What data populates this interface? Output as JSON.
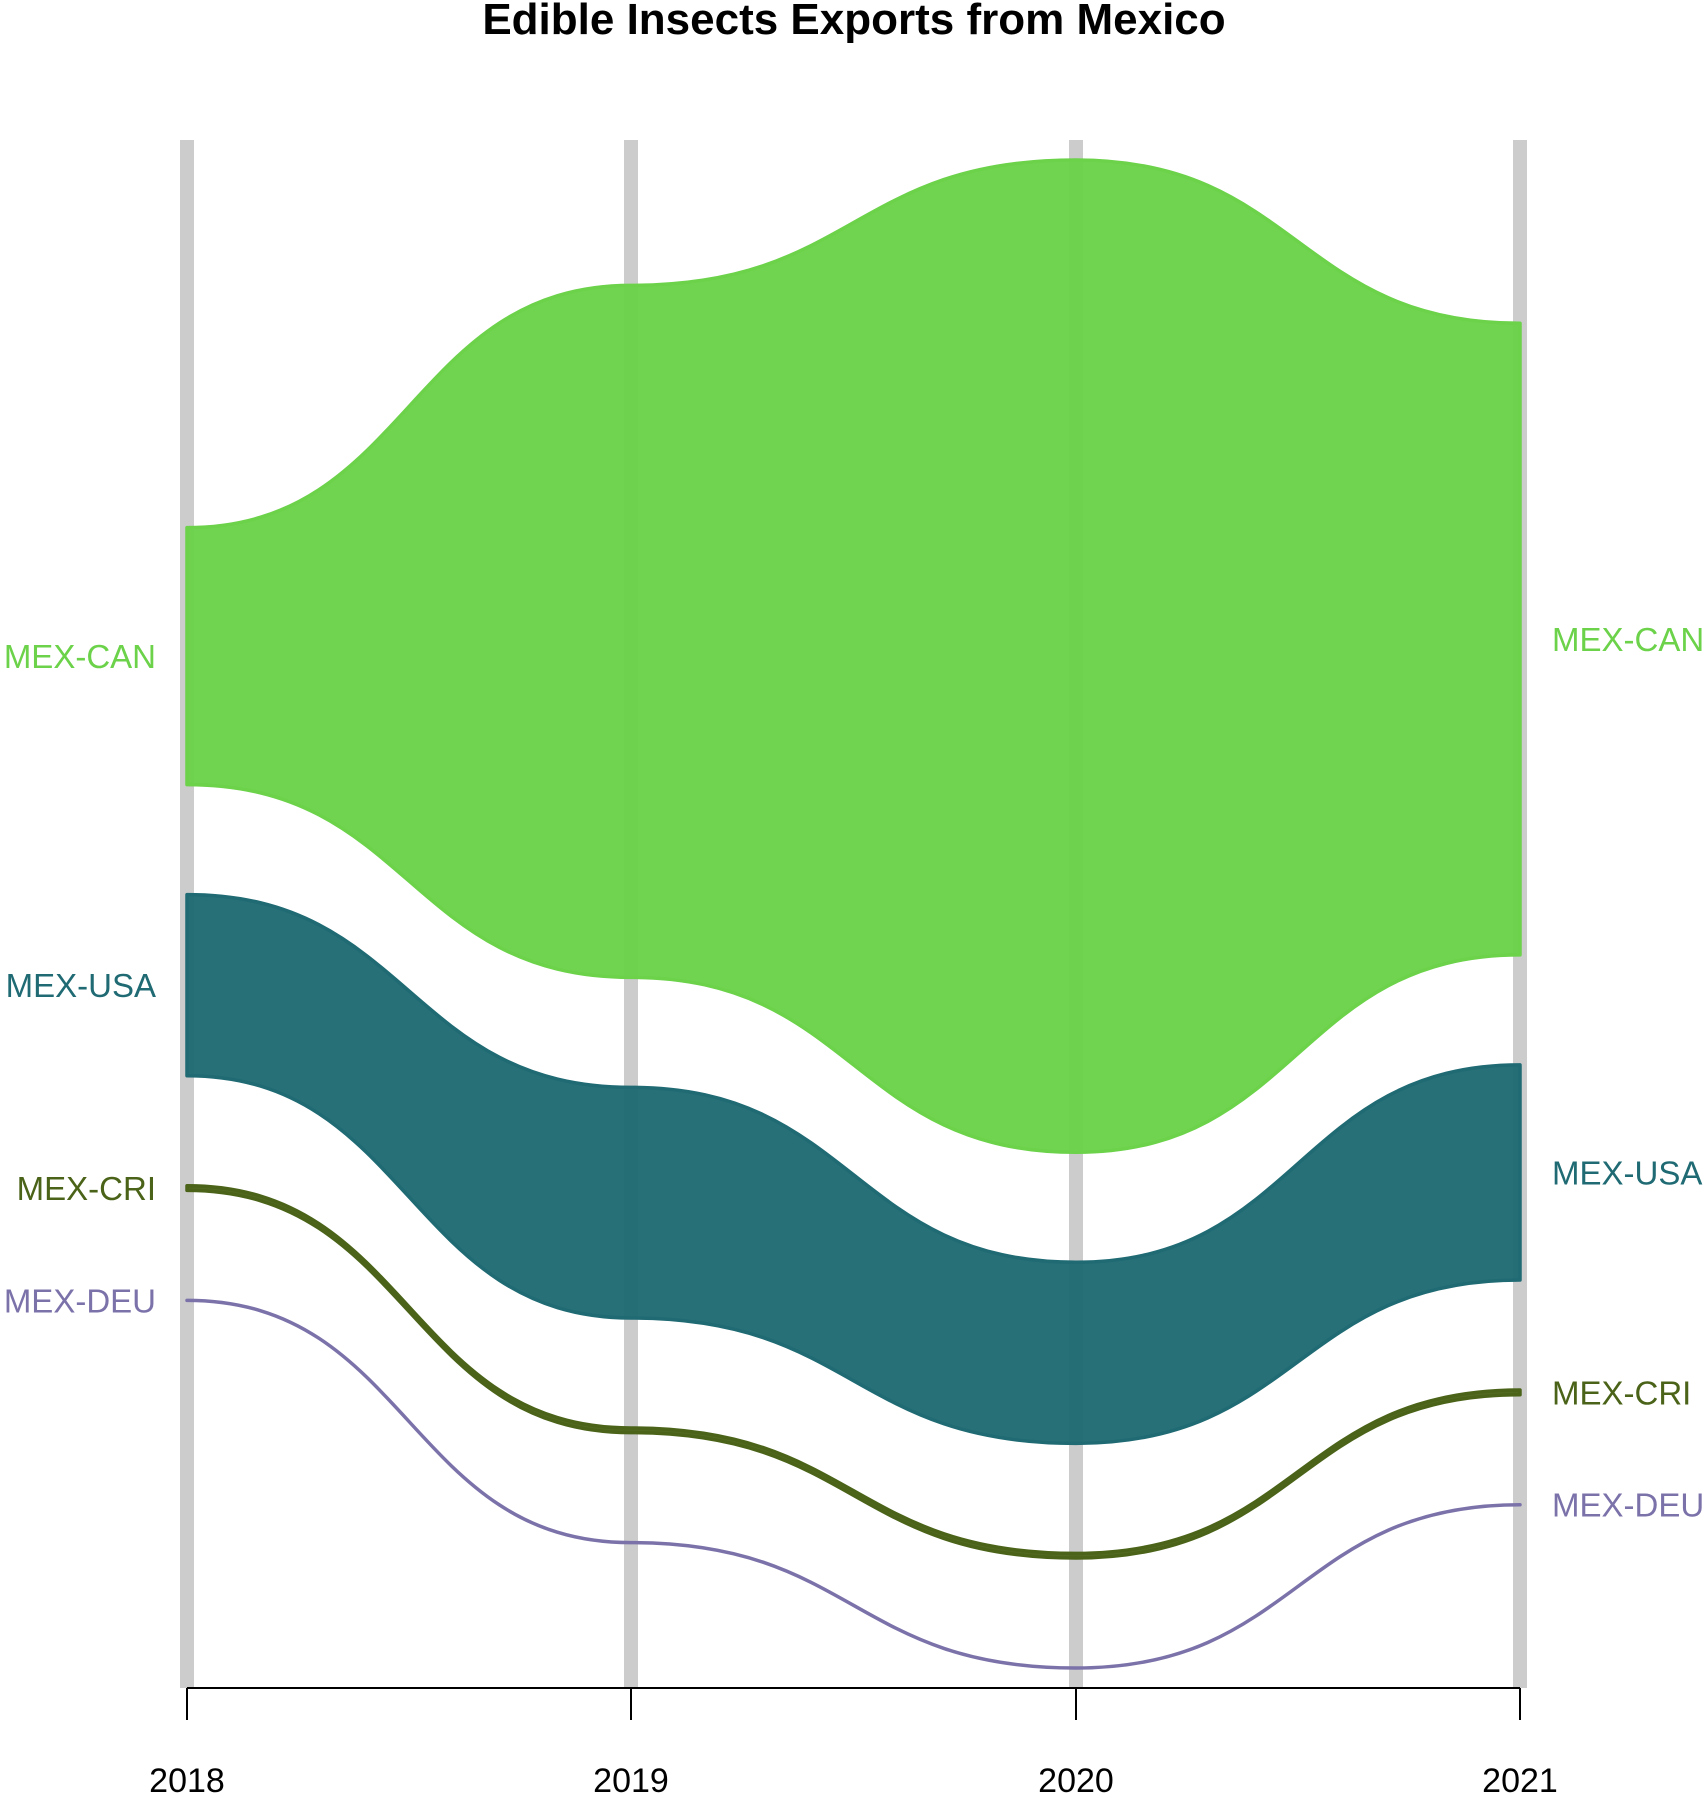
{
  "chart_data": {
    "type": "area",
    "title": "Edible Insects Exports from Mexico",
    "x": [
      "2018",
      "2019",
      "2020",
      "2021"
    ],
    "ylim": [
      0,
      1.0
    ],
    "series": [
      {
        "name": "MEX-CAN",
        "color": "#6bd24a",
        "values": [
          0.166,
          0.447,
          0.641,
          0.408
        ]
      },
      {
        "name": "MEX-USA",
        "color": "#1f6a73",
        "values": [
          0.117,
          0.149,
          0.117,
          0.139
        ]
      },
      {
        "name": "MEX-CRI",
        "color": "#4a6318",
        "values": [
          0.003,
          0.003,
          0.003,
          0.003
        ]
      },
      {
        "name": "MEX-DEU",
        "color": "#7b72aa",
        "values": [
          0.0,
          0.0,
          0.0,
          0.0
        ]
      }
    ],
    "labels_left": [
      "MEX-CAN",
      "MEX-USA",
      "MEX-CRI",
      "MEX-DEU"
    ],
    "labels_right": [
      "MEX-CAN",
      "MEX-USA",
      "MEX-CRI",
      "MEX-DEU"
    ],
    "grid": true
  }
}
